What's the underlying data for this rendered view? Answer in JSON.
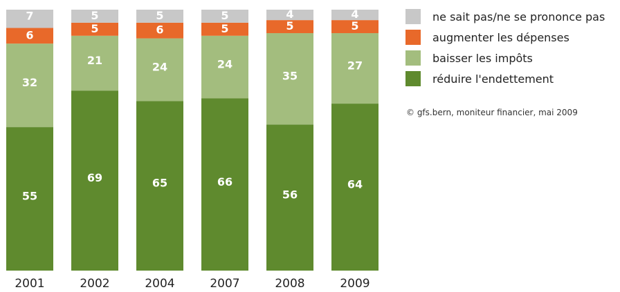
{
  "chart_data": {
    "type": "bar",
    "stacked": true,
    "normalized": true,
    "categories": [
      "2001",
      "2002",
      "2004",
      "2007",
      "2008",
      "2009"
    ],
    "ylim": [
      0,
      100
    ],
    "series": [
      {
        "name": "réduire l'endettement",
        "color": "#5f8a2e",
        "values": [
          55,
          69,
          65,
          66,
          56,
          64
        ]
      },
      {
        "name": "baisser les impôts",
        "color": "#a3bd7e",
        "values": [
          32,
          21,
          24,
          24,
          35,
          27
        ]
      },
      {
        "name": "augmenter les dépenses",
        "color": "#e8692a",
        "values": [
          6,
          5,
          6,
          5,
          5,
          5
        ]
      },
      {
        "name": "ne sait pas/ne se prononce pas",
        "color": "#c8c8c8",
        "values": [
          7,
          5,
          5,
          5,
          4,
          4
        ]
      }
    ],
    "legend_order": [
      3,
      2,
      1,
      0
    ],
    "legend_position": "right",
    "grid": false
  },
  "source": "© gfs.bern, moniteur financier, mai 2009"
}
